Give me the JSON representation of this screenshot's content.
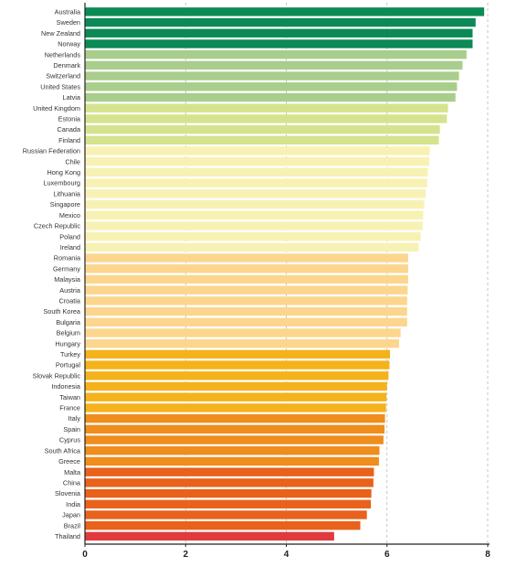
{
  "chart_data": {
    "type": "bar",
    "orientation": "horizontal",
    "title": "",
    "xlabel": "",
    "ylabel": "",
    "xlim": [
      0,
      8
    ],
    "x_ticks": [
      0,
      2,
      4,
      6,
      8
    ],
    "grid": "vertical-dashed",
    "categories": [
      "Australia",
      "Sweden",
      "New Zealand",
      "Norway",
      "Netherlands",
      "Denmark",
      "Switzerland",
      "United States",
      "Latvia",
      "United Kingdom",
      "Estonia",
      "Canada",
      "Finland",
      "Russian Federation",
      "Chile",
      "Hong Kong",
      "Luxembourg",
      "Lithuania",
      "Singapore",
      "Mexico",
      "Czech Republic",
      "Poland",
      "Ireland",
      "Romania",
      "Germany",
      "Malaysia",
      "Austria",
      "Croatia",
      "South Korea",
      "Bulgaria",
      "Belgium",
      "Hungary",
      "Turkey",
      "Portugal",
      "Slovak Republic",
      "Indonesia",
      "Taiwan",
      "France",
      "Italy",
      "Spain",
      "Cyprus",
      "South Africa",
      "Greece",
      "Malta",
      "China",
      "Slovenia",
      "India",
      "Japan",
      "Brazil",
      "Thailand"
    ],
    "values": [
      7.93,
      7.76,
      7.7,
      7.7,
      7.58,
      7.5,
      7.43,
      7.39,
      7.36,
      7.21,
      7.19,
      7.05,
      7.03,
      6.85,
      6.84,
      6.81,
      6.8,
      6.77,
      6.74,
      6.72,
      6.71,
      6.67,
      6.63,
      6.42,
      6.42,
      6.42,
      6.41,
      6.4,
      6.4,
      6.4,
      6.27,
      6.24,
      6.06,
      6.05,
      6.03,
      6.0,
      5.99,
      5.98,
      5.96,
      5.95,
      5.93,
      5.85,
      5.84,
      5.74,
      5.73,
      5.69,
      5.68,
      5.6,
      5.47,
      4.95
    ],
    "colors": [
      "#0b8a55",
      "#0b8a55",
      "#0b8a55",
      "#0b8a55",
      "#a9cd8c",
      "#a9cd8c",
      "#a9cd8c",
      "#a9cd8c",
      "#a9cd8c",
      "#d5e38f",
      "#d5e38f",
      "#d5e38f",
      "#d5e38f",
      "#f7f2b4",
      "#f7f2b4",
      "#f7f2b4",
      "#f7f2b4",
      "#f7f2b4",
      "#f7f2b4",
      "#f7f2b4",
      "#f7f2b4",
      "#f7f2b4",
      "#f7f2b4",
      "#fcd68e",
      "#fcd68e",
      "#fcd68e",
      "#fcd68e",
      "#fcd68e",
      "#fcd68e",
      "#fcd68e",
      "#fcd68e",
      "#fcd68e",
      "#f5b21b",
      "#f5b21b",
      "#f5b21b",
      "#f5b21b",
      "#f5b21b",
      "#f5b21b",
      "#ef8d1d",
      "#ef8d1d",
      "#ef8d1d",
      "#ef8d1d",
      "#ef8d1d",
      "#e8621b",
      "#e8621b",
      "#e8621b",
      "#e8621b",
      "#e8621b",
      "#e8621b",
      "#e03a3e"
    ]
  }
}
